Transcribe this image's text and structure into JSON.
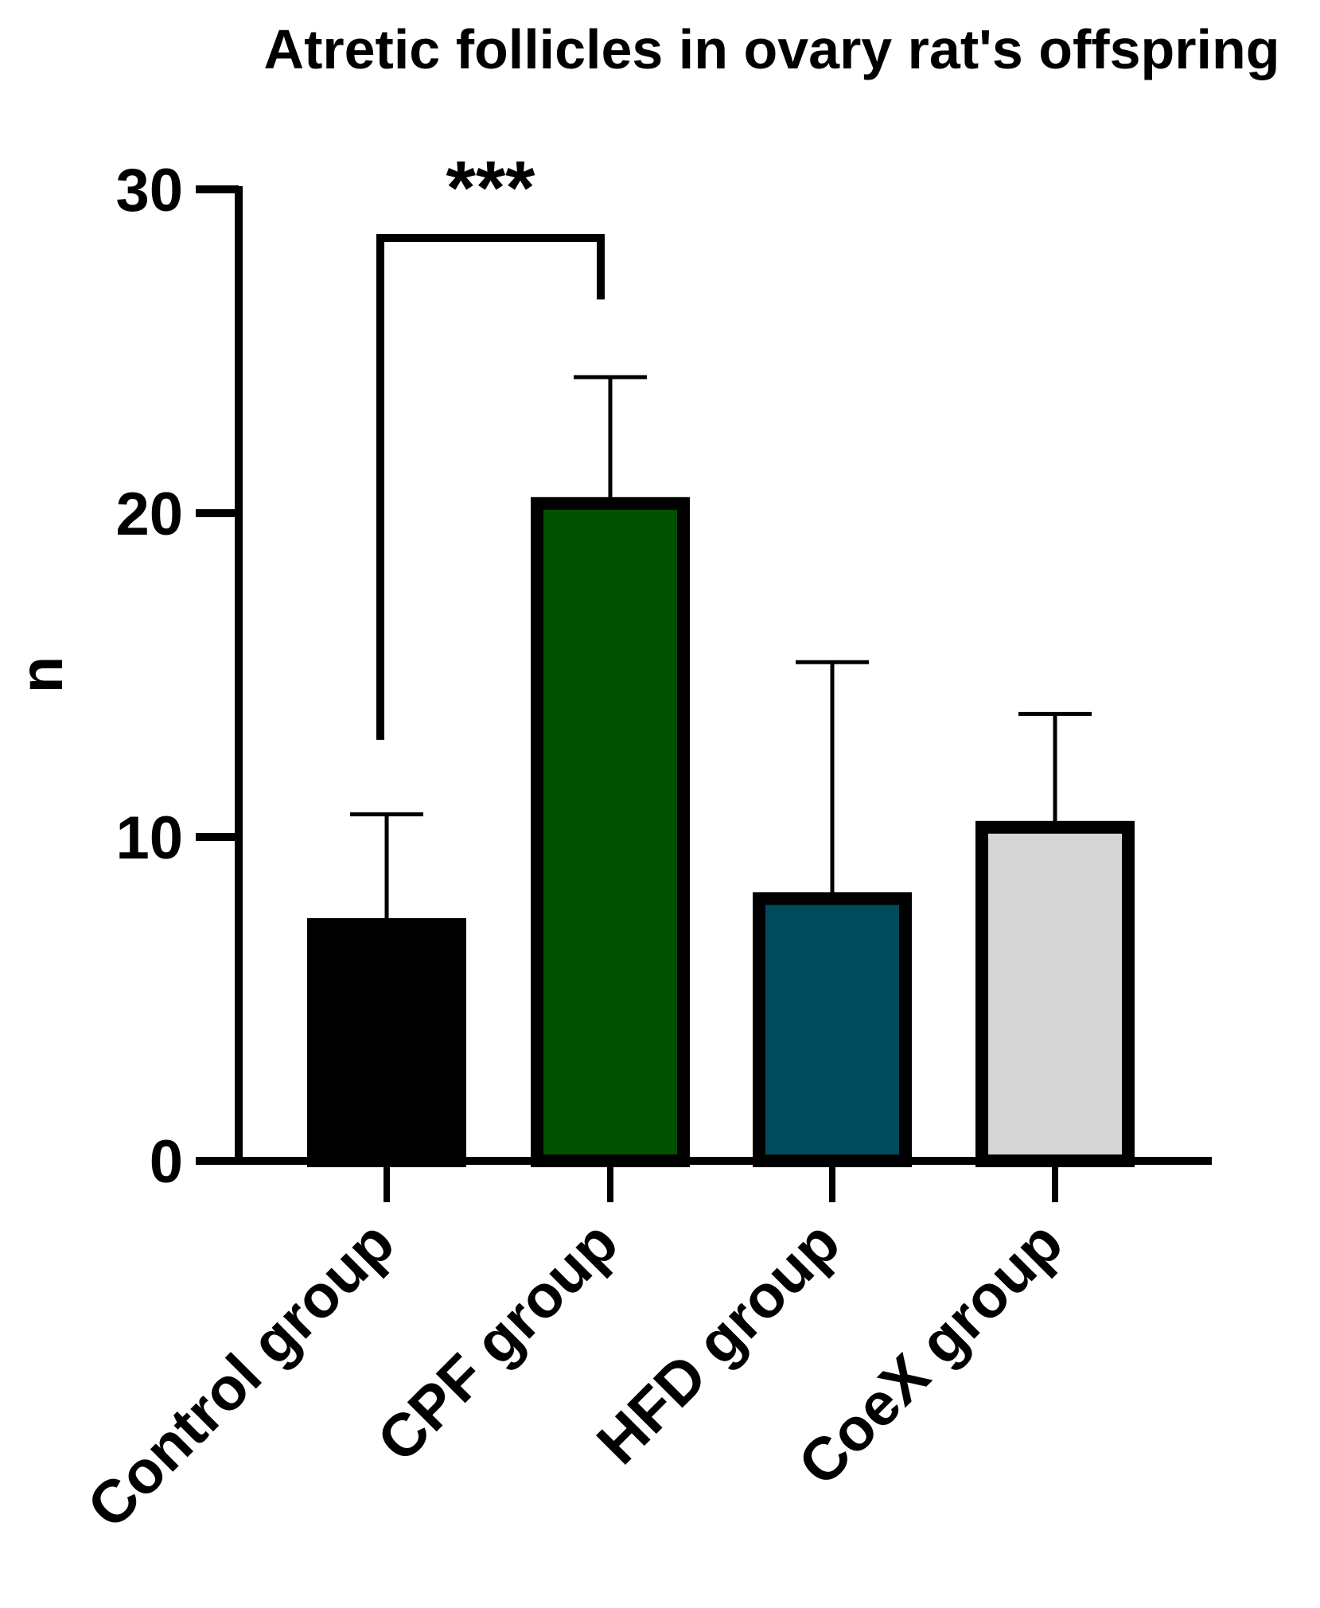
{
  "chart_data": {
    "type": "bar",
    "title": "Atretic follicles in ovary rat's offspring",
    "xlabel": "",
    "ylabel": "n",
    "ylim": [
      0,
      30
    ],
    "yticks": [
      0,
      10,
      20,
      30
    ],
    "ytick_labels": [
      "0",
      "10",
      "20",
      "30"
    ],
    "categories": [
      "Control group",
      "CPF group",
      "HFD group",
      "CoeX group"
    ],
    "values": [
      7.3,
      20.3,
      8.1,
      10.3
    ],
    "error_upper": [
      10.7,
      24.2,
      15.4,
      13.8
    ],
    "colors": [
      "#000000",
      "#005000",
      "#004a5e",
      "#d6d6d6"
    ],
    "significance": [
      {
        "label": "***",
        "from_category": "Control group",
        "to_category": "CPF group",
        "bracket_y": 28.5,
        "left_end_y": 13.0,
        "right_end_y": 26.6
      }
    ],
    "grid": false,
    "legend": "none"
  }
}
